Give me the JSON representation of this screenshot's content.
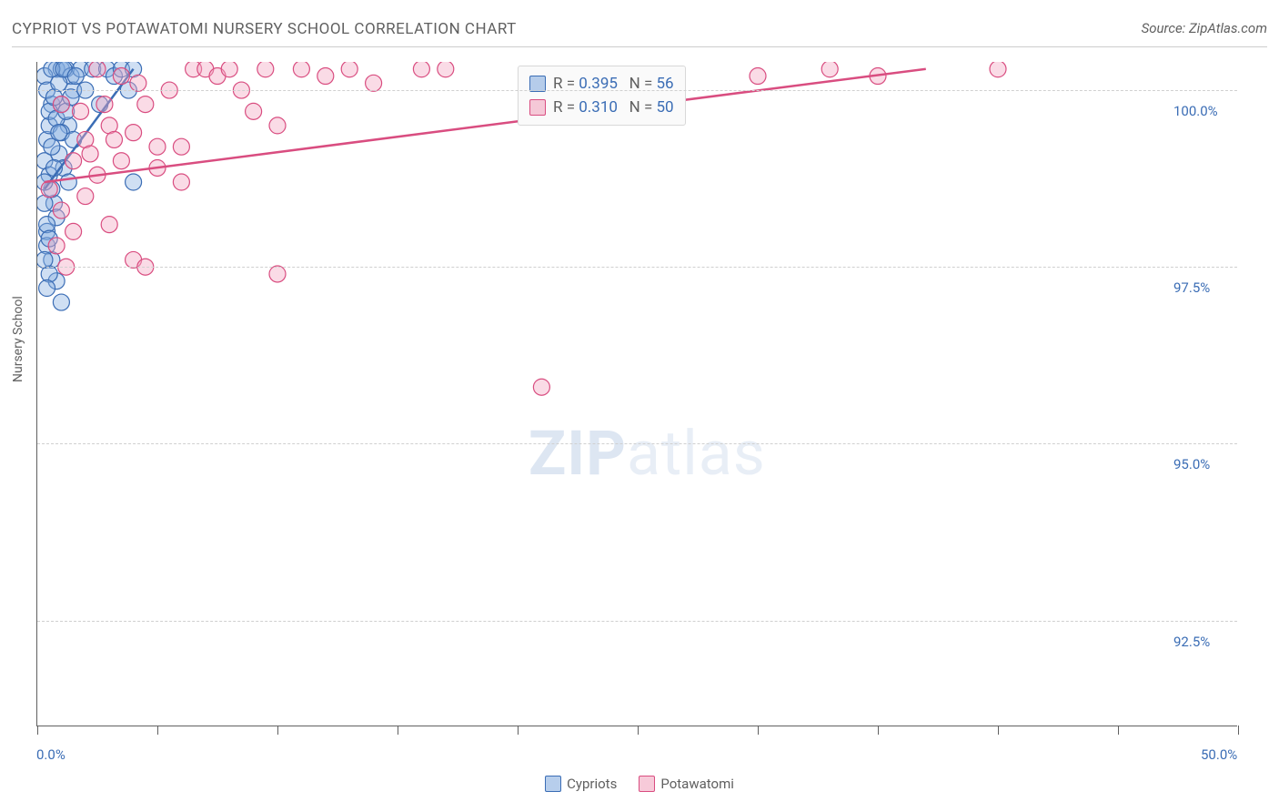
{
  "chart": {
    "title": "CYPRIOT VS POTAWATOMI NURSERY SCHOOL CORRELATION CHART",
    "source": "Source: ZipAtlas.com",
    "type": "scatter",
    "background_color": "#ffffff",
    "grid_color": "#d0d0d0",
    "axis_color": "#606060",
    "title_fontsize": 17,
    "label_fontsize": 14,
    "ylabel": "Nursery School",
    "xlim": [
      0,
      50
    ],
    "ylim": [
      91,
      100.4
    ],
    "y_ticks": [
      {
        "value": 100.0,
        "label": "100.0%"
      },
      {
        "value": 97.5,
        "label": "97.5%"
      },
      {
        "value": 95.0,
        "label": "95.0%"
      },
      {
        "value": 92.5,
        "label": "92.5%"
      }
    ],
    "x_ticks_major": [
      0,
      50
    ],
    "x_ticks_minor": [
      5,
      10,
      15,
      20,
      25,
      30,
      35,
      40,
      45
    ],
    "x_tick_labels": {
      "0": "0.0%",
      "50": "50.0%"
    },
    "marker_radius": 9,
    "marker_opacity": 0.4,
    "line_width": 2.5,
    "series": [
      {
        "name": "Cypriots",
        "color_stroke": "#3b6db5",
        "color_fill": "#87aee0",
        "R": "0.395",
        "N": "56",
        "trend": {
          "x1": 0.3,
          "y1": 98.6,
          "x2": 4.0,
          "y2": 100.3
        },
        "points": [
          [
            0.3,
            99.0
          ],
          [
            0.4,
            99.3
          ],
          [
            0.6,
            99.8
          ],
          [
            0.8,
            100.3
          ],
          [
            1.0,
            100.3
          ],
          [
            1.2,
            100.3
          ],
          [
            1.4,
            100.2
          ],
          [
            1.0,
            99.8
          ],
          [
            0.5,
            98.8
          ],
          [
            0.7,
            98.4
          ],
          [
            0.4,
            98.0
          ],
          [
            0.6,
            97.6
          ],
          [
            0.8,
            97.3
          ],
          [
            1.0,
            97.0
          ],
          [
            0.5,
            99.5
          ],
          [
            0.9,
            99.1
          ],
          [
            1.1,
            98.9
          ],
          [
            1.3,
            99.5
          ],
          [
            1.5,
            100.0
          ],
          [
            1.8,
            100.3
          ],
          [
            2.0,
            100.0
          ],
          [
            2.3,
            100.3
          ],
          [
            2.6,
            99.8
          ],
          [
            2.9,
            100.3
          ],
          [
            3.2,
            100.2
          ],
          [
            3.5,
            100.3
          ],
          [
            3.8,
            100.0
          ],
          [
            4.0,
            100.3
          ],
          [
            0.6,
            98.6
          ],
          [
            0.8,
            98.2
          ],
          [
            0.4,
            97.8
          ],
          [
            0.5,
            97.4
          ],
          [
            4.0,
            98.7
          ],
          [
            0.3,
            100.2
          ],
          [
            0.4,
            100.0
          ],
          [
            0.5,
            99.7
          ],
          [
            0.6,
            100.3
          ],
          [
            0.7,
            99.9
          ],
          [
            0.8,
            99.6
          ],
          [
            0.9,
            100.1
          ],
          [
            1.0,
            99.4
          ],
          [
            1.1,
            100.3
          ],
          [
            1.2,
            99.7
          ],
          [
            1.4,
            99.9
          ],
          [
            1.6,
            100.2
          ],
          [
            0.3,
            98.4
          ],
          [
            0.4,
            98.1
          ],
          [
            0.5,
            97.9
          ],
          [
            0.3,
            97.6
          ],
          [
            0.4,
            97.2
          ],
          [
            0.3,
            98.7
          ],
          [
            0.6,
            99.2
          ],
          [
            0.7,
            98.9
          ],
          [
            0.9,
            99.4
          ],
          [
            1.3,
            98.7
          ],
          [
            1.5,
            99.3
          ]
        ]
      },
      {
        "name": "Potawatomi",
        "color_stroke": "#d94d80",
        "color_fill": "#f2a6c0",
        "R": "0.310",
        "N": "50",
        "trend": {
          "x1": 0.3,
          "y1": 98.7,
          "x2": 37.0,
          "y2": 100.3
        },
        "points": [
          [
            0.5,
            98.6
          ],
          [
            1.0,
            98.3
          ],
          [
            1.5,
            99.0
          ],
          [
            2.0,
            99.3
          ],
          [
            2.5,
            98.8
          ],
          [
            3.0,
            99.5
          ],
          [
            3.5,
            99.0
          ],
          [
            4.0,
            99.4
          ],
          [
            4.5,
            99.8
          ],
          [
            5.0,
            98.9
          ],
          [
            5.5,
            100.0
          ],
          [
            6.0,
            99.2
          ],
          [
            6.5,
            100.3
          ],
          [
            7.0,
            100.3
          ],
          [
            7.5,
            100.2
          ],
          [
            8.0,
            100.3
          ],
          [
            8.5,
            100.0
          ],
          [
            9.0,
            99.7
          ],
          [
            9.5,
            100.3
          ],
          [
            10.0,
            99.5
          ],
          [
            11.0,
            100.3
          ],
          [
            12.0,
            100.2
          ],
          [
            13.0,
            100.3
          ],
          [
            14.0,
            100.1
          ],
          [
            16.0,
            100.3
          ],
          [
            17.0,
            100.3
          ],
          [
            21.0,
            100.1
          ],
          [
            30.0,
            100.2
          ],
          [
            33.0,
            100.3
          ],
          [
            35.0,
            100.2
          ],
          [
            40.0,
            100.3
          ],
          [
            1.0,
            99.8
          ],
          [
            2.0,
            98.5
          ],
          [
            3.0,
            98.1
          ],
          [
            4.0,
            97.6
          ],
          [
            4.5,
            97.5
          ],
          [
            5.0,
            99.2
          ],
          [
            1.5,
            98.0
          ],
          [
            2.5,
            100.3
          ],
          [
            6.0,
            98.7
          ],
          [
            10.0,
            97.4
          ],
          [
            21.0,
            95.8
          ],
          [
            3.5,
            100.2
          ],
          [
            4.2,
            100.1
          ],
          [
            0.8,
            97.8
          ],
          [
            1.2,
            97.5
          ],
          [
            1.8,
            99.7
          ],
          [
            2.2,
            99.1
          ],
          [
            2.8,
            99.8
          ],
          [
            3.2,
            99.3
          ]
        ]
      }
    ],
    "bottom_legend": [
      {
        "label": "Cypriots",
        "stroke": "#3b6db5",
        "fill": "#87aee0"
      },
      {
        "label": "Potawatomi",
        "stroke": "#d94d80",
        "fill": "#f2a6c0"
      }
    ],
    "watermark": {
      "bold": "ZIP",
      "rest": "atlas"
    }
  }
}
